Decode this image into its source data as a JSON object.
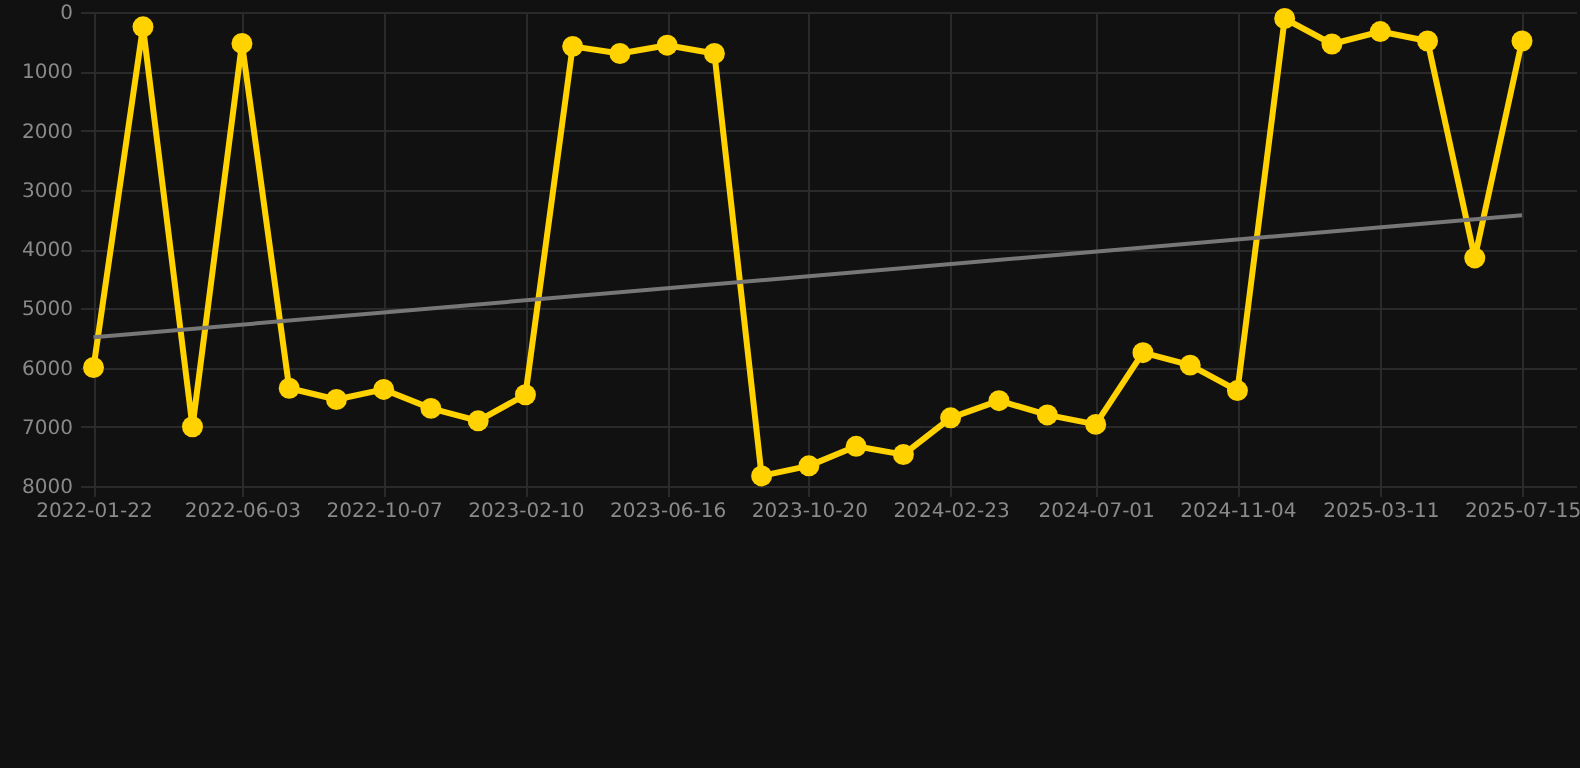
{
  "chart_data": {
    "type": "line",
    "x": [
      "2022-01-22",
      "2022-03-07",
      "2022-04-20",
      "2022-06-03",
      "2022-07-15",
      "2022-08-26",
      "2022-10-07",
      "2022-11-18",
      "2022-12-30",
      "2023-02-10",
      "2023-03-24",
      "2023-05-05",
      "2023-06-16",
      "2023-07-28",
      "2023-09-08",
      "2023-10-20",
      "2023-12-01",
      "2024-01-12",
      "2024-02-23",
      "2024-04-06",
      "2024-05-19",
      "2024-07-01",
      "2024-08-12",
      "2024-09-23",
      "2024-11-04",
      "2024-12-16",
      "2025-01-27",
      "2025-03-11",
      "2025-04-22",
      "2025-06-03",
      "2025-07-15"
    ],
    "series": [
      {
        "color": "#ffd200",
        "marker": "circle",
        "values": [
          6000,
          250,
          7000,
          530,
          6350,
          6540,
          6370,
          6690,
          6900,
          6460,
          580,
          700,
          560,
          700,
          7830,
          7660,
          7330,
          7470,
          6850,
          6560,
          6800,
          6960,
          5750,
          5960,
          6390,
          110,
          540,
          330,
          490,
          4150,
          490
        ]
      },
      {
        "type": "line",
        "color": "#777777",
        "marker": "none",
        "x": [
          "2022-01-22",
          "2025-07-15"
        ],
        "values": [
          5490,
          3430
        ]
      }
    ],
    "xlim": [
      "2022-01-10",
      "2025-09-01"
    ],
    "xticks": [
      "2022-01-22",
      "2022-06-03",
      "2022-10-07",
      "2023-02-10",
      "2023-06-16",
      "2023-10-20",
      "2024-02-23",
      "2024-07-01",
      "2024-11-04",
      "2025-03-11",
      "2025-07-15"
    ],
    "ylim": [
      8000,
      0
    ],
    "yticks": [
      0,
      1000,
      2000,
      3000,
      4000,
      5000,
      6000,
      7000,
      8000
    ],
    "grid": true,
    "line_style": "solid"
  }
}
